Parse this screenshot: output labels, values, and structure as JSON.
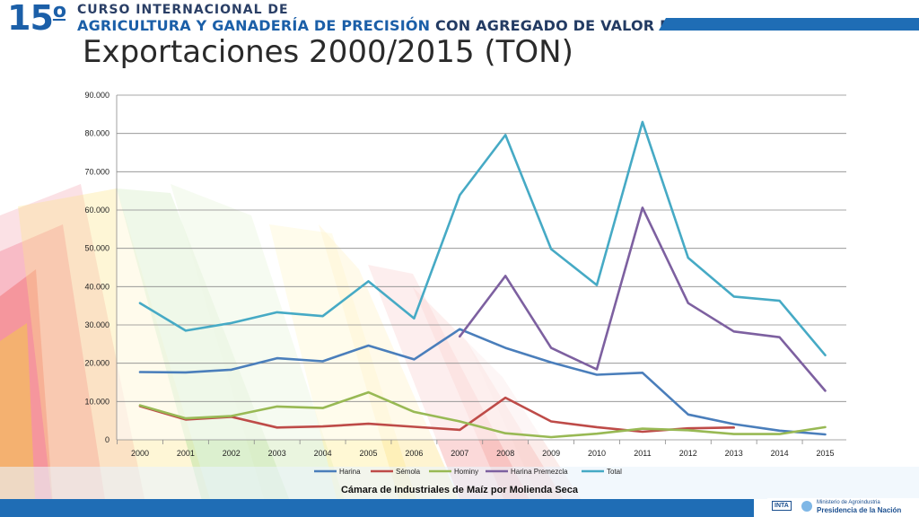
{
  "header": {
    "number": "15",
    "ordinal": "o",
    "line1": "CURSO INTERNACIONAL DE",
    "line2a": "AGRICULTURA Y GANADERÍA DE PRECISIÓN",
    "line2b": "CON AGREGADO DE VALOR EN ORIGEN"
  },
  "slide_title": "Exportaciones 2000/2015 (TON)",
  "source": "Cámara de Industriales de Maíz por Molienda Seca",
  "footer": {
    "inta": "INTA",
    "ministry_line1": "Ministerio de Agroindustria",
    "ministry_line2": "Presidencia de la Nación"
  },
  "colors": {
    "accent": "#1f6db5",
    "harina": "#4a7ebb",
    "semola": "#be4b48",
    "hominy": "#98b954",
    "premezcla": "#7d60a0",
    "total": "#46aac5"
  },
  "chart_data": {
    "type": "line",
    "title": "",
    "xlabel": "",
    "ylabel": "",
    "ylim": [
      0,
      90000
    ],
    "yticks": [
      0,
      10000,
      20000,
      30000,
      40000,
      50000,
      60000,
      70000,
      80000,
      90000
    ],
    "ytick_labels": [
      "0",
      "10.000",
      "20.000",
      "30.000",
      "40.000",
      "50.000",
      "60.000",
      "70.000",
      "80.000",
      "90.000"
    ],
    "grid": true,
    "legend": "bottom",
    "categories": [
      "2000",
      "2001",
      "2002",
      "2003",
      "2004",
      "2005",
      "2006",
      "2007",
      "2008",
      "2009",
      "2010",
      "2011",
      "2012",
      "2013",
      "2014",
      "2015"
    ],
    "series": [
      {
        "name": "Harina",
        "color": "#4a7ebb",
        "values": [
          17700,
          17600,
          18300,
          21300,
          20500,
          24600,
          21000,
          28900,
          24000,
          20200,
          17000,
          17500,
          6600,
          4100,
          2400,
          1400
        ]
      },
      {
        "name": "Sémola",
        "color": "#be4b48",
        "values": [
          8800,
          5300,
          6000,
          3200,
          3500,
          4200,
          3400,
          2600,
          11000,
          4800,
          3300,
          2100,
          3000,
          3200,
          null,
          null
        ]
      },
      {
        "name": "Hominy",
        "color": "#98b954",
        "values": [
          9000,
          5600,
          6200,
          8700,
          8300,
          12400,
          7300,
          4800,
          1700,
          700,
          1600,
          2900,
          2500,
          1500,
          1500,
          3300
        ]
      },
      {
        "name": "Harina Premezcla",
        "color": "#7d60a0",
        "values": [
          null,
          null,
          null,
          null,
          null,
          null,
          null,
          27000,
          42800,
          24000,
          18400,
          60600,
          35700,
          28300,
          26800,
          12800
        ]
      },
      {
        "name": "Total",
        "color": "#46aac5",
        "values": [
          35700,
          28500,
          30500,
          33300,
          32300,
          41400,
          31700,
          63900,
          79600,
          49800,
          40400,
          83000,
          47500,
          37400,
          36300,
          22100
        ]
      }
    ]
  }
}
